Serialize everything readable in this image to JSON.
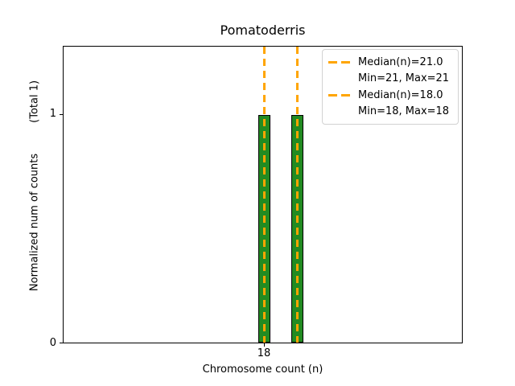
{
  "chart_data": {
    "type": "bar",
    "title": "Pomatoderris",
    "xlabel": "Chromosome count (n)",
    "ylabel": "Normalized num of counts",
    "ylabel_annotation": "(Total 1)",
    "bars": [
      {
        "n": 18,
        "value": 1
      },
      {
        "n": 21,
        "value": 1
      }
    ],
    "median_lines": [
      {
        "n": 21.0
      },
      {
        "n": 18.0
      }
    ],
    "xticks": [
      "18"
    ],
    "yticks": [
      "0",
      "1"
    ],
    "ylim": [
      0,
      1.3
    ],
    "grid": false,
    "legend": {
      "position": "upper right",
      "items": [
        {
          "line1": "Median(n)=21.0",
          "line2": "Min=21, Max=21"
        },
        {
          "line1": "Median(n)=18.0",
          "line2": "Min=18, Max=18"
        }
      ]
    },
    "colors": {
      "bar_fill": "#228B22",
      "bar_edge": "#000000",
      "median_line": "#FFA500",
      "legend_border": "#d2d2d2"
    }
  }
}
